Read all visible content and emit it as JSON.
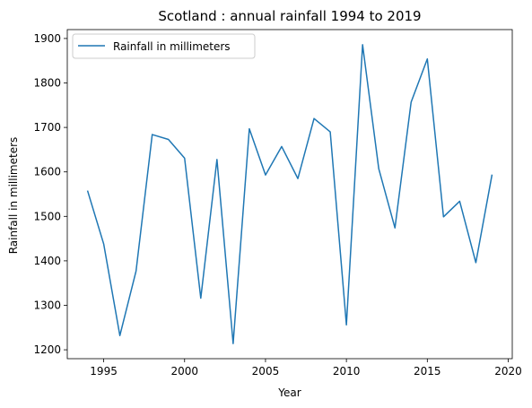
{
  "chart_data": {
    "type": "line",
    "title": "Scotland : annual rainfall 1994 to 2019",
    "xlabel": "Year",
    "ylabel": "Rainfall in millimeters",
    "xlim": [
      1992.75,
      2020.25
    ],
    "ylim": [
      1180,
      1920
    ],
    "xticks": [
      1995,
      2000,
      2005,
      2010,
      2015,
      2020
    ],
    "yticks": [
      1200,
      1300,
      1400,
      1500,
      1600,
      1700,
      1800,
      1900
    ],
    "grid": false,
    "legend_position": "top-left",
    "series": [
      {
        "name": "Rainfall in millimeters",
        "color": "#1f77b4",
        "x": [
          1994,
          1995,
          1996,
          1997,
          1998,
          1999,
          2000,
          2001,
          2002,
          2003,
          2004,
          2005,
          2006,
          2007,
          2008,
          2009,
          2010,
          2011,
          2012,
          2013,
          2014,
          2015,
          2016,
          2017,
          2018,
          2019
        ],
        "y": [
          1558,
          1438,
          1232,
          1377,
          1684,
          1673,
          1631,
          1316,
          1628,
          1214,
          1697,
          1593,
          1657,
          1585,
          1720,
          1690,
          1256,
          1886,
          1607,
          1474,
          1757,
          1854,
          1499,
          1534,
          1396,
          1594
        ]
      }
    ]
  }
}
